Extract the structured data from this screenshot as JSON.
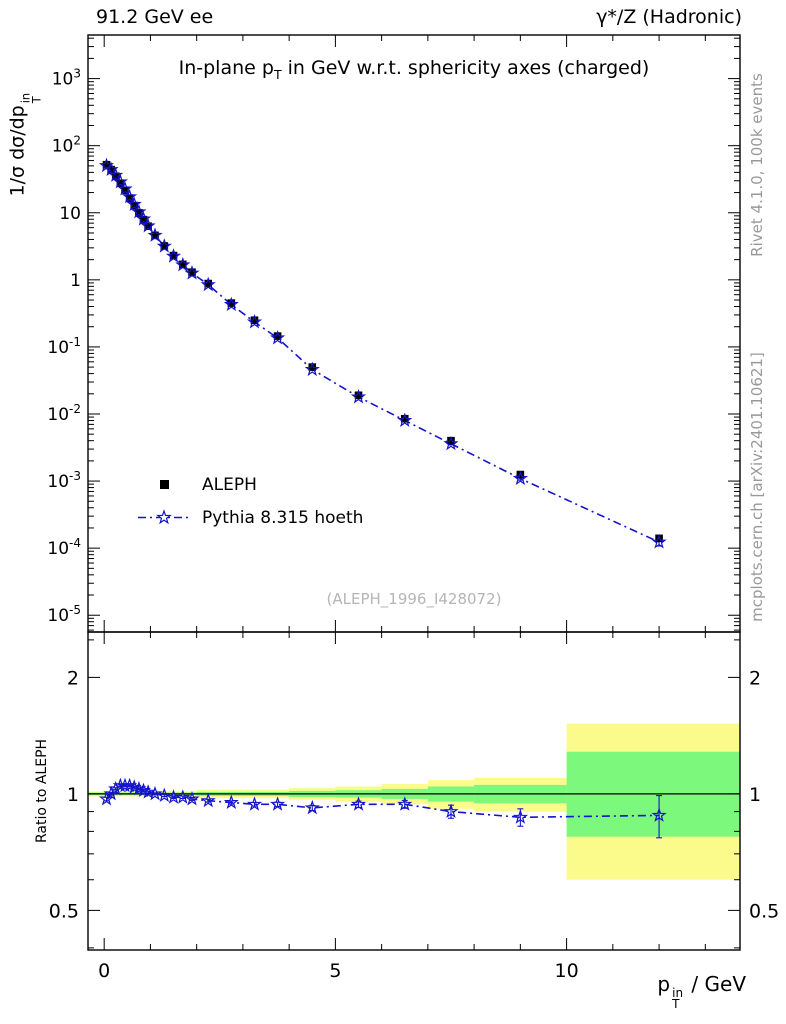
{
  "header": {
    "left": "91.2 GeV ee",
    "right": "γ*/Z (Hadronic)"
  },
  "title": {
    "prefix": "In-plane p",
    "sub": "T",
    "suffix": " in GeV w.r.t. sphericity axes (charged)"
  },
  "axis_labels": {
    "y_main": {
      "prefix": "1/σ  dσ/dp",
      "sub": "T",
      "sup": "in"
    },
    "y_ratio": "Ratio to ALEPH",
    "x": {
      "prefix": "p",
      "sub": "T",
      "sup": "in",
      "suffix": " / GeV"
    }
  },
  "watermark": "(ALEPH_1996_I428072)",
  "side_notes": {
    "top": "Rivet 4.1.0,  100k events",
    "bottom": "mcplots.cern.ch [arXiv:2401.10621]"
  },
  "legend": [
    {
      "label": "ALEPH",
      "marker": "filled-black-square"
    },
    {
      "label": "Pythia 8.315 hoeth",
      "marker": "open-blue-star-dashdot-line"
    }
  ],
  "colors": {
    "mc": "#1414cc",
    "data": "#000000",
    "band_total": "#fbfb8b",
    "band_stat": "#7cf87c",
    "watermark": "#b5b5b5",
    "side_note": "#999999"
  },
  "chart_data": {
    "type": "scatter",
    "title": "In-plane pT in GeV w.r.t. sphericity axes (charged)",
    "xlabel": "pT_in / GeV",
    "ylabel": "1/sigma dsigma/dpT_in",
    "ratio_label": "Ratio to ALEPH",
    "x": [
      0.05,
      0.15,
      0.25,
      0.35,
      0.45,
      0.55,
      0.65,
      0.75,
      0.85,
      0.95,
      1.1,
      1.3,
      1.5,
      1.7,
      1.9,
      2.25,
      2.75,
      3.25,
      3.75,
      4.5,
      5.5,
      6.5,
      7.5,
      9.0,
      12.0
    ],
    "series": [
      {
        "name": "ALEPH",
        "marker": "filled-square",
        "color": "#000000",
        "values": [
          52,
          44,
          35,
          27.5,
          21.5,
          16.5,
          12.8,
          10.0,
          7.9,
          6.3,
          4.6,
          3.2,
          2.3,
          1.7,
          1.3,
          0.88,
          0.45,
          0.25,
          0.145,
          0.05,
          0.019,
          0.0085,
          0.004,
          0.00125,
          0.00014
        ]
      },
      {
        "name": "Pythia 8.315 hoeth",
        "marker": "open-star",
        "linestyle": "dash-dot",
        "color": "#1414cc",
        "values": [
          50.4,
          44.0,
          36.1,
          28.9,
          22.6,
          17.3,
          13.3,
          10.3,
          8.06,
          6.36,
          4.6,
          3.17,
          2.25,
          1.67,
          1.26,
          0.845,
          0.428,
          0.235,
          0.136,
          0.046,
          0.0179,
          0.008,
          0.0036,
          0.00109,
          0.000123
        ]
      }
    ],
    "ratio": {
      "values": [
        0.97,
        1.0,
        1.03,
        1.05,
        1.05,
        1.05,
        1.04,
        1.03,
        1.02,
        1.01,
        1.0,
        0.99,
        0.98,
        0.98,
        0.97,
        0.96,
        0.95,
        0.94,
        0.94,
        0.92,
        0.94,
        0.94,
        0.9,
        0.87,
        0.88
      ],
      "errors": [
        0.01,
        0.008,
        0.007,
        0.006,
        0.006,
        0.006,
        0.006,
        0.006,
        0.006,
        0.006,
        0.006,
        0.006,
        0.007,
        0.007,
        0.008,
        0.008,
        0.009,
        0.01,
        0.012,
        0.014,
        0.018,
        0.022,
        0.035,
        0.045,
        0.11
      ]
    },
    "uncertainty_bands": [
      {
        "x0": -0.35,
        "x1": 2.0,
        "ylo": 0.985,
        "yhi": 1.015,
        "glo": 0.992,
        "ghi": 1.008
      },
      {
        "x0": 2.0,
        "x1": 4.0,
        "ylo": 0.975,
        "yhi": 1.025,
        "glo": 0.988,
        "ghi": 1.012
      },
      {
        "x0": 4.0,
        "x1": 5.0,
        "ylo": 0.965,
        "yhi": 1.035,
        "glo": 0.982,
        "ghi": 1.018
      },
      {
        "x0": 5.0,
        "x1": 6.0,
        "ylo": 0.955,
        "yhi": 1.045,
        "glo": 0.978,
        "ghi": 1.022
      },
      {
        "x0": 6.0,
        "x1": 7.0,
        "ylo": 0.94,
        "yhi": 1.06,
        "glo": 0.97,
        "ghi": 1.03
      },
      {
        "x0": 7.0,
        "x1": 8.0,
        "ylo": 0.915,
        "yhi": 1.085,
        "glo": 0.955,
        "ghi": 1.045
      },
      {
        "x0": 8.0,
        "x1": 10.0,
        "ylo": 0.9,
        "yhi": 1.1,
        "glo": 0.945,
        "ghi": 1.055
      },
      {
        "x0": 10.0,
        "x1": 13.75,
        "ylo": 0.6,
        "yhi": 1.52,
        "glo": 0.775,
        "ghi": 1.285
      }
    ],
    "x_axis": {
      "lim": [
        -0.35,
        13.75
      ],
      "major": [
        0,
        5,
        10
      ],
      "labels": [
        "0",
        "5",
        "10"
      ],
      "minor_step": 1
    },
    "y_axis": {
      "scale": "log",
      "lim_exp": [
        -5.25,
        3.65
      ],
      "tick_exponents": [
        3,
        2,
        1,
        0,
        -1,
        -2,
        -3,
        -4,
        -5
      ]
    },
    "ratio_axis": {
      "scale": "log",
      "lim": [
        0.395,
        2.62
      ],
      "major": [
        0.5,
        1,
        2
      ],
      "labels": [
        "0.5",
        "1",
        "2"
      ],
      "minor": [
        0.4,
        0.6,
        0.7,
        0.8,
        0.9,
        2.5
      ]
    }
  }
}
